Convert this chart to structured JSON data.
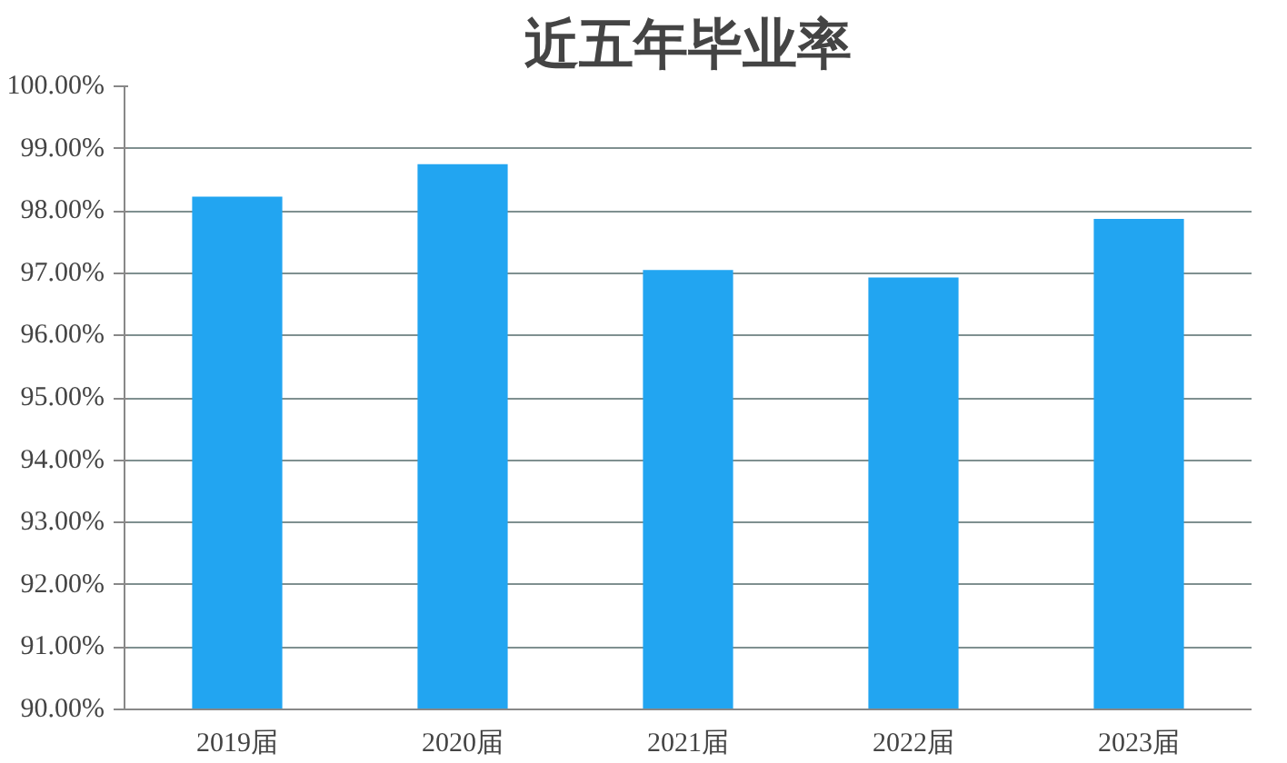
{
  "chart_data": {
    "type": "bar",
    "title": "近五年毕业率",
    "categories": [
      "2019届",
      "2020届",
      "2021届",
      "2022届",
      "2023届"
    ],
    "values": [
      98.23,
      98.75,
      97.05,
      96.93,
      97.87
    ],
    "color": "#22a5f1",
    "ylim": [
      90,
      100
    ],
    "yticks": [
      {
        "value": 90,
        "label": "90.00%"
      },
      {
        "value": 91,
        "label": "91.00%"
      },
      {
        "value": 92,
        "label": "92.00%"
      },
      {
        "value": 93,
        "label": "93.00%"
      },
      {
        "value": 94,
        "label": "94.00%"
      },
      {
        "value": 95,
        "label": "95.00%"
      },
      {
        "value": 96,
        "label": "96.00%"
      },
      {
        "value": 97,
        "label": "97.00%"
      },
      {
        "value": 98,
        "label": "98.00%"
      },
      {
        "value": 99,
        "label": "99.00%"
      },
      {
        "value": 100,
        "label": "100.00%"
      }
    ],
    "grid": "y"
  }
}
